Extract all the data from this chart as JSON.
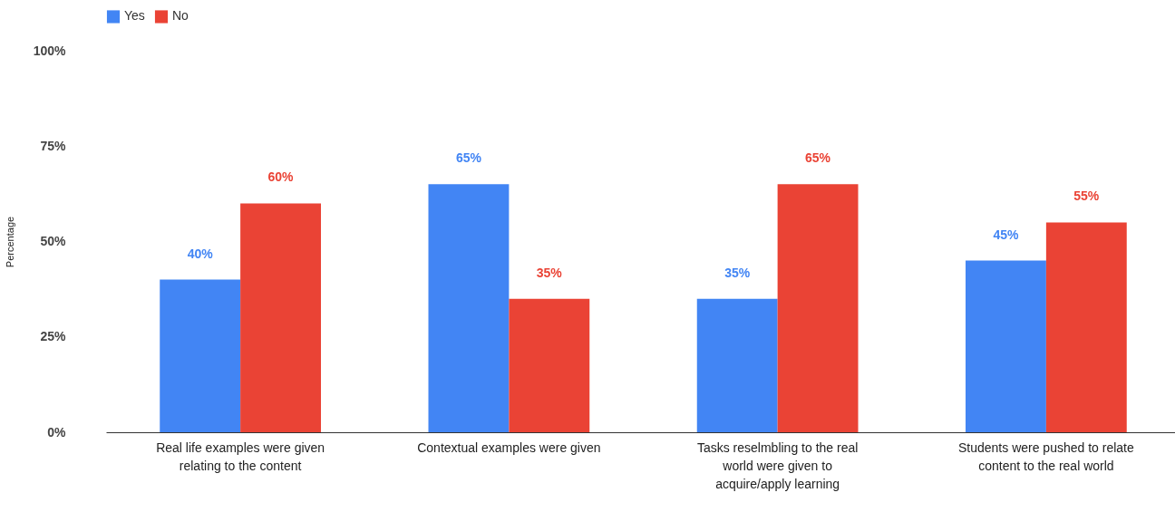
{
  "chart_data": {
    "type": "bar",
    "ylabel": "Percentage",
    "categories": [
      "Real life examples were given relating to the content",
      "Contextual examples were given",
      "Tasks reselmbling to the real world were given to acquire/apply learning",
      "Students were pushed to relate content to the real world"
    ],
    "series": [
      {
        "name": "Yes",
        "color": "#4285f4",
        "values": [
          40,
          65,
          35,
          45
        ]
      },
      {
        "name": "No",
        "color": "#ea4335",
        "values": [
          60,
          35,
          65,
          55
        ]
      }
    ],
    "ylim": [
      0,
      100
    ],
    "yticks": [
      {
        "value": 0,
        "label": "0%"
      },
      {
        "value": 25,
        "label": "25%"
      },
      {
        "value": 50,
        "label": "50%"
      },
      {
        "value": 75,
        "label": "75%"
      },
      {
        "value": 100,
        "label": "100%"
      }
    ],
    "value_labels": [
      [
        "40%",
        "65%",
        "35%",
        "45%"
      ],
      [
        "60%",
        "35%",
        "65%",
        "55%"
      ]
    ],
    "legend": "top",
    "grid": false
  }
}
